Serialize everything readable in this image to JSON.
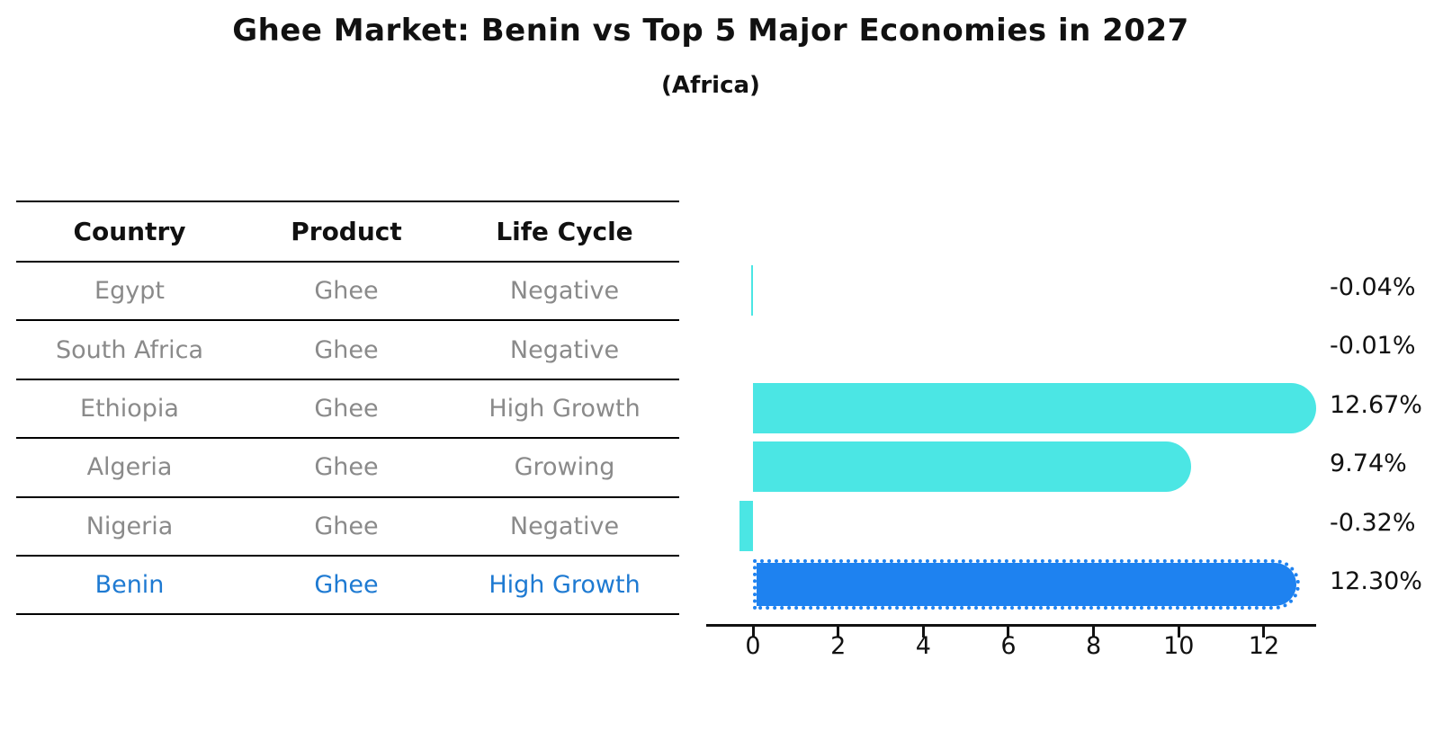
{
  "title": "Ghee Market: Benin vs Top 5 Major Economies in 2027",
  "subtitle": "(Africa)",
  "table": {
    "headers": [
      "Country",
      "Product",
      "Life Cycle"
    ],
    "rows": [
      {
        "country": "Egypt",
        "product": "Ghee",
        "life_cycle": "Negative",
        "highlight": false
      },
      {
        "country": "South Africa",
        "product": "Ghee",
        "life_cycle": "Negative",
        "highlight": false
      },
      {
        "country": "Ethiopia",
        "product": "Ghee",
        "life_cycle": "High Growth",
        "highlight": false
      },
      {
        "country": "Algeria",
        "product": "Ghee",
        "life_cycle": "Growing",
        "highlight": false
      },
      {
        "country": "Nigeria",
        "product": "Ghee",
        "life_cycle": "Negative",
        "highlight": false
      },
      {
        "country": "Benin",
        "product": "Ghee",
        "life_cycle": "High Growth",
        "highlight": true
      }
    ]
  },
  "chart_data": {
    "type": "bar",
    "orientation": "horizontal",
    "title": "Ghee Market: Benin vs Top 5 Major Economies in 2027",
    "subtitle": "(Africa)",
    "categories": [
      "Egypt",
      "South Africa",
      "Ethiopia",
      "Algeria",
      "Nigeria",
      "Benin"
    ],
    "values": [
      -0.04,
      -0.01,
      12.67,
      9.74,
      -0.32,
      12.3
    ],
    "value_labels": [
      "-0.04%",
      "-0.01%",
      "12.67%",
      "9.74%",
      "-0.32%",
      "12.30%"
    ],
    "x_ticks": [
      0,
      2,
      4,
      6,
      8,
      10,
      12
    ],
    "xlim": [
      -1.1,
      13.3
    ],
    "grid": false,
    "legend": false,
    "highlight_index": 5,
    "bar_color": "#4BE6E4",
    "highlight_color": "#1E82F0"
  },
  "colors": {
    "row_text": "#8A8A8A",
    "header_text": "#111111",
    "highlight_text": "#1E7AD2",
    "axis": "#111111"
  }
}
